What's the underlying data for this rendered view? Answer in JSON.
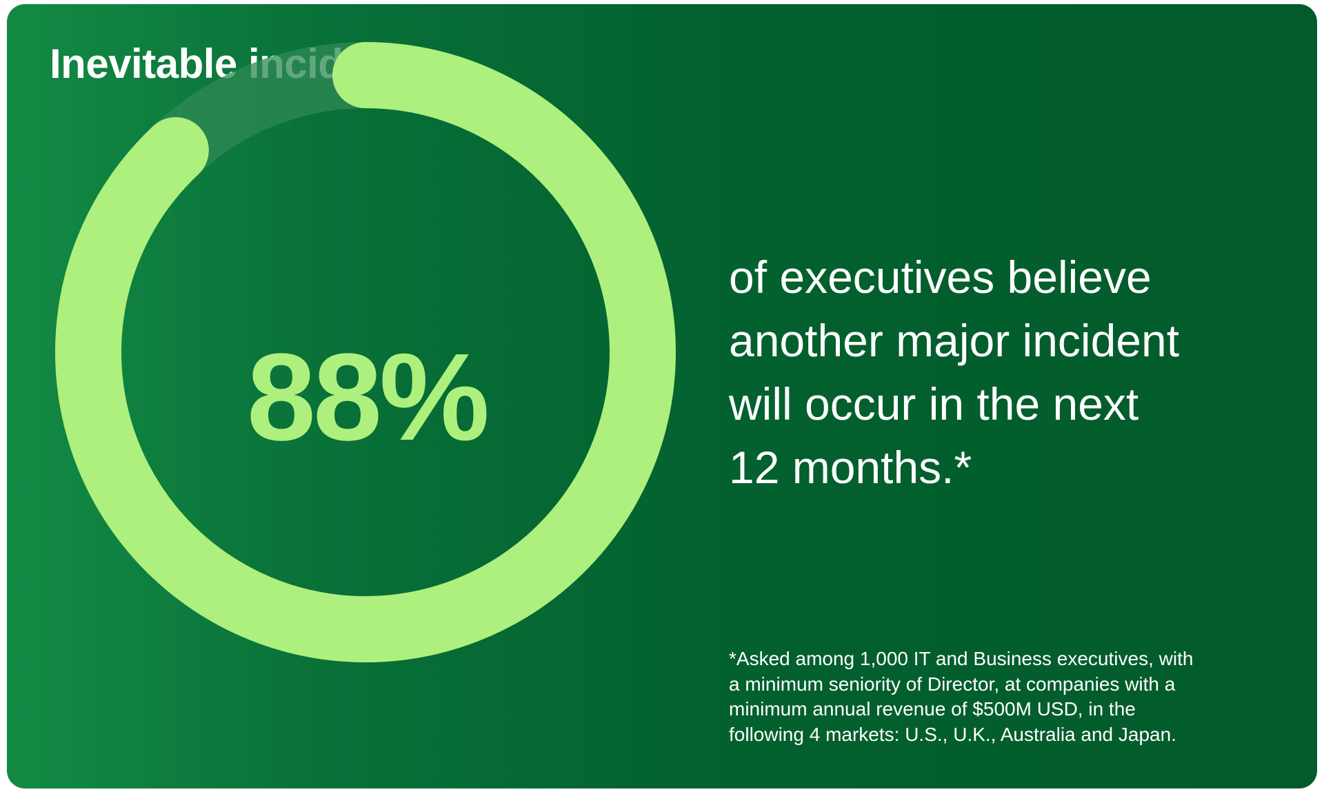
{
  "card": {
    "title": "Inevitable incidents"
  },
  "chart_data": {
    "type": "pie",
    "value": 88,
    "max": 100,
    "display_value": "88%",
    "colors": {
      "fill": "#aef07e",
      "track": "#2f8a55"
    }
  },
  "statement": {
    "lines": [
      "of executives believe",
      "another major incident",
      "will occur in the next",
      "12 months.*"
    ]
  },
  "footnote": {
    "lines": [
      "*Asked among 1,000 IT and Business executives, with",
      "a minimum seniority of Director, at companies with a",
      "minimum annual revenue of $500M USD, in the",
      "following 4 markets: U.S., U.K., Australia and Japan."
    ]
  },
  "colors": {
    "background_start": "#138a44",
    "background_end": "#035a2b",
    "accent": "#aef07e",
    "text": "#ffffff"
  }
}
